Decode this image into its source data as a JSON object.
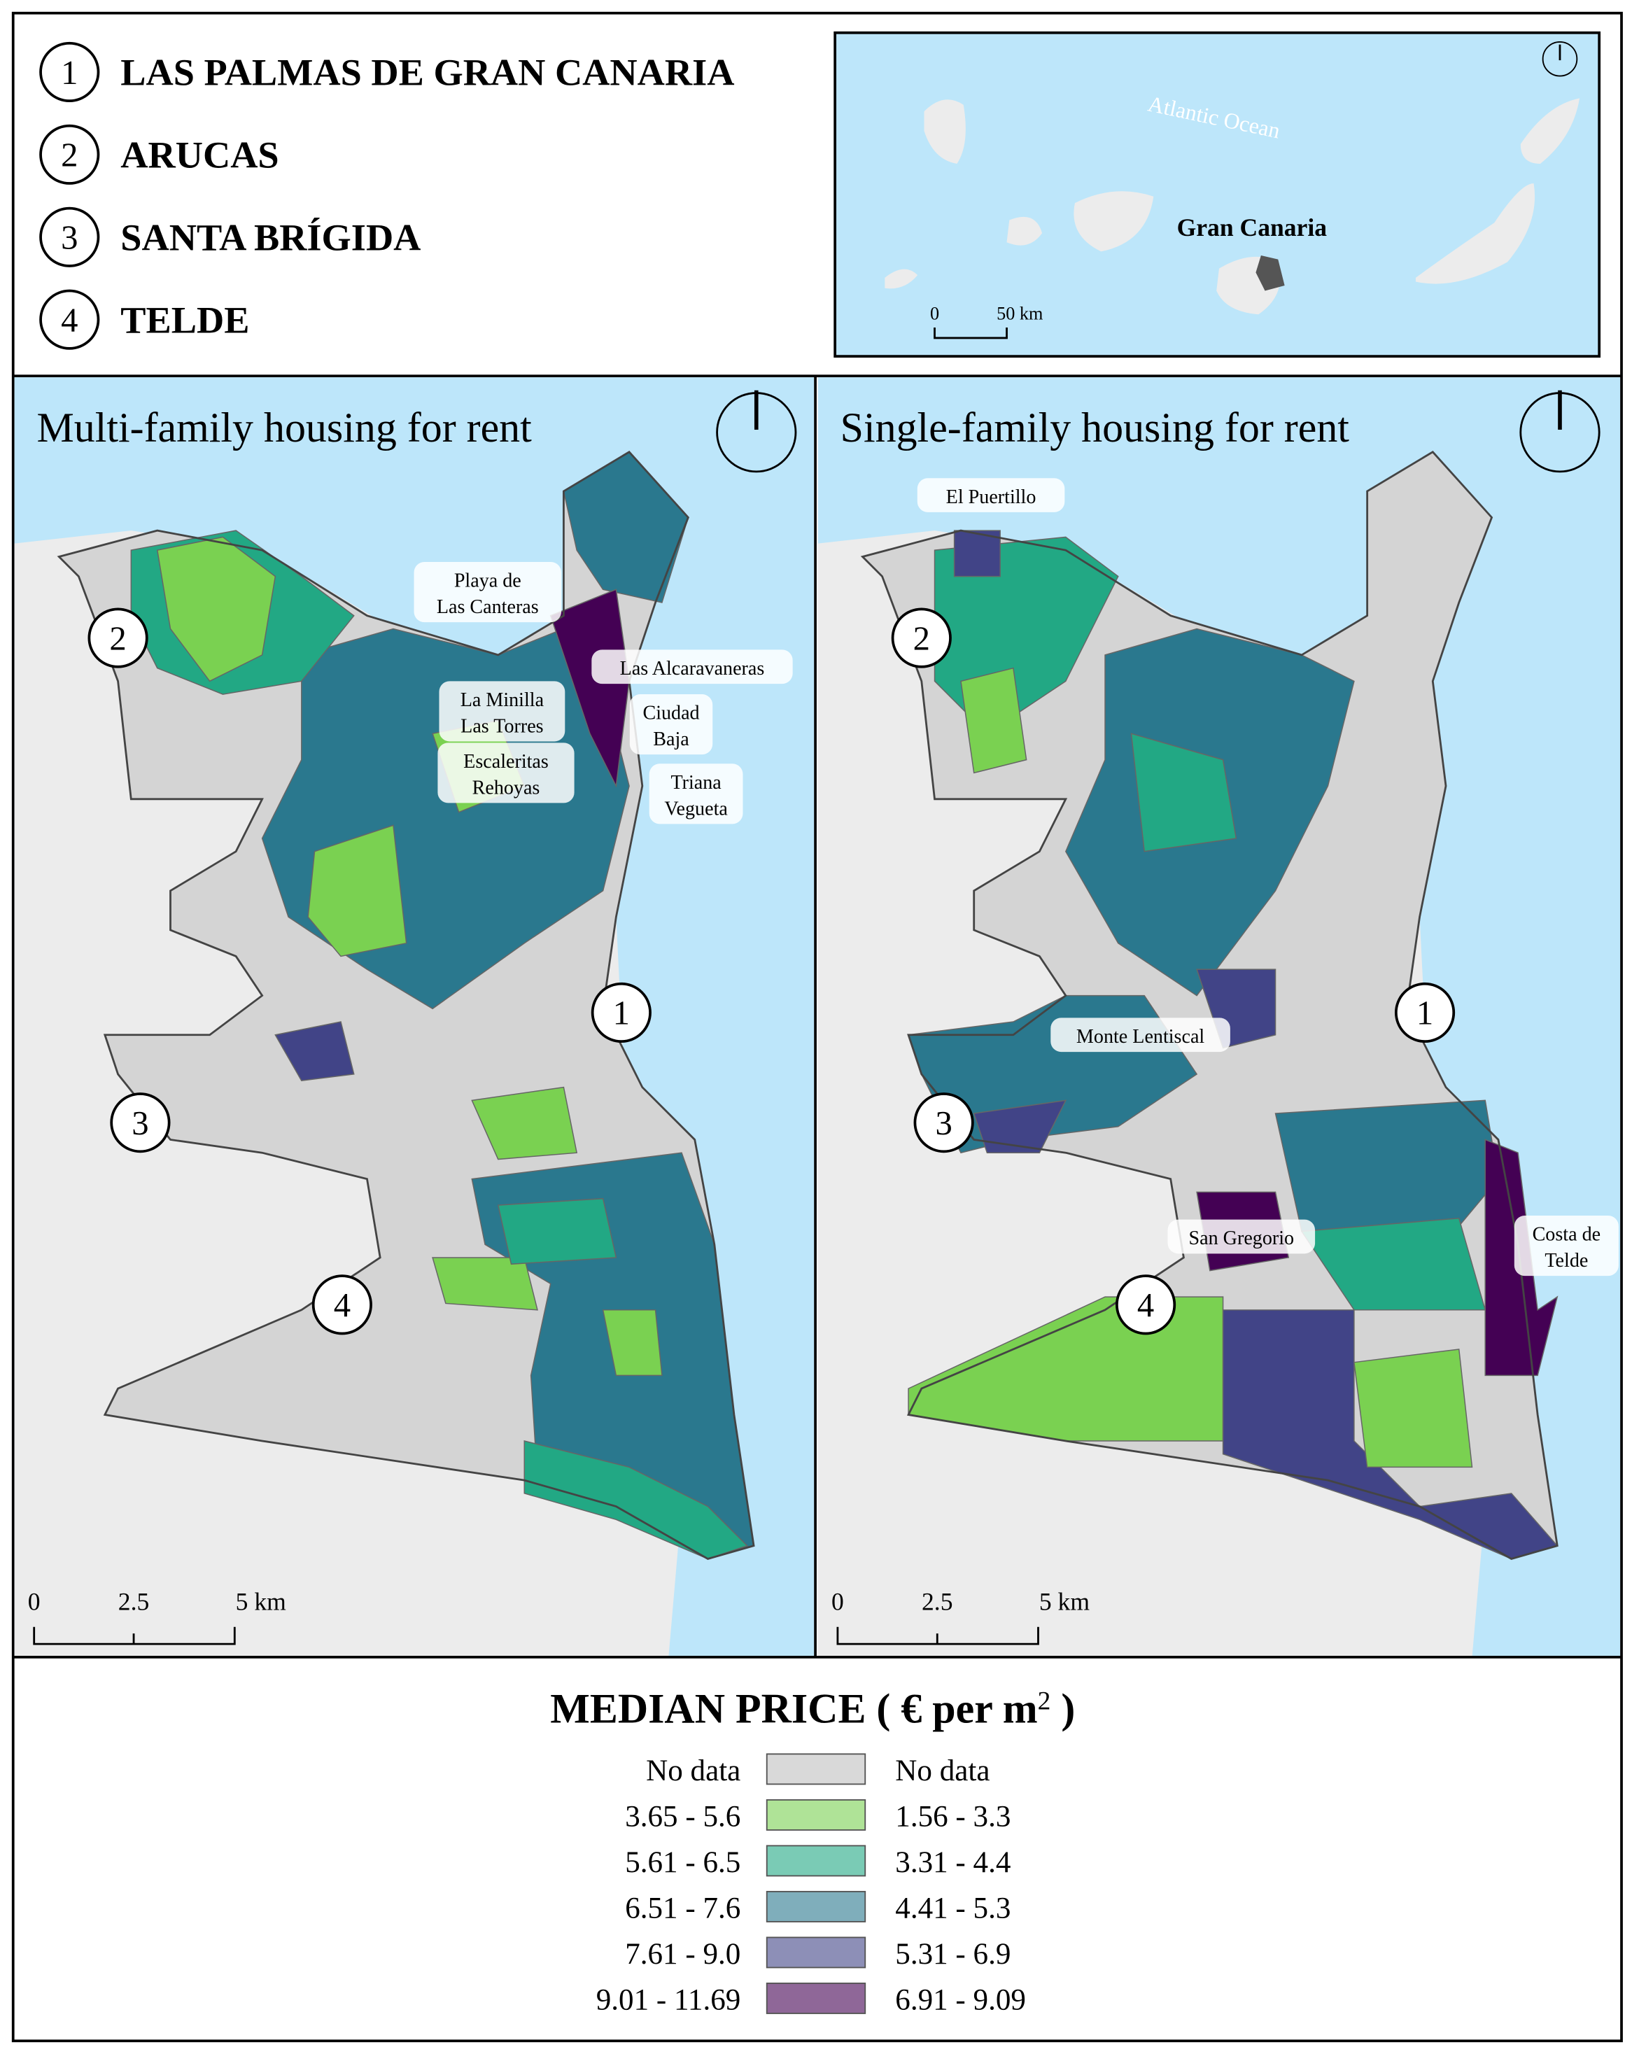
{
  "municipalities": [
    {
      "number": "1",
      "name": "LAS PALMAS DE GRAN CANARIA"
    },
    {
      "number": "2",
      "name": "ARUCAS"
    },
    {
      "number": "3",
      "name": "SANTA BRÍGIDA"
    },
    {
      "number": "4",
      "name": "TELDE"
    }
  ],
  "inset": {
    "ocean": "Atlantic Ocean",
    "island": "Gran Canaria",
    "scale": [
      "0",
      "50 km"
    ]
  },
  "maps": [
    {
      "title": "Multi-family housing for rent",
      "places": [
        [
          "Playa de",
          "Las Canteras"
        ],
        [
          "Las Alcaravaneras"
        ],
        [
          "La Minilla",
          "Las Torres"
        ],
        [
          "Ciudad",
          "Baja"
        ],
        [
          "Escaleritas",
          "Rehoyas"
        ],
        [
          "Triana",
          "Vegueta"
        ]
      ],
      "scale": [
        "0",
        "2.5",
        "5 km"
      ]
    },
    {
      "title": "Single-family housing for rent",
      "places": [
        [
          "El Puertillo"
        ],
        [
          "Monte Lentiscal"
        ],
        [
          "San Gregorio"
        ],
        [
          "Costa de",
          "Telde"
        ]
      ],
      "scale": [
        "0",
        "2.5",
        "5 km"
      ]
    }
  ],
  "legend": {
    "title": "MEDIAN PRICE ( € per m",
    "superscript": "2",
    "title_end": " )",
    "rows": [
      {
        "multi": "No data",
        "single": "No data",
        "color": "#d9d9d9"
      },
      {
        "multi": "3.65 - 5.6",
        "single": "1.56 - 3.3",
        "color": "#7ad151"
      },
      {
        "multi": "5.61 - 6.5",
        "single": "3.31 - 4.4",
        "color": "#22a884"
      },
      {
        "multi": "6.51 - 7.6",
        "single": "4.41 - 5.3",
        "color": "#2a788e"
      },
      {
        "multi": "7.61 - 9.0",
        "single": "5.31 - 6.9",
        "color": "#414487"
      },
      {
        "multi": "9.01 - 11.69",
        "single": "6.91 - 9.09",
        "color": "#440154"
      }
    ]
  }
}
